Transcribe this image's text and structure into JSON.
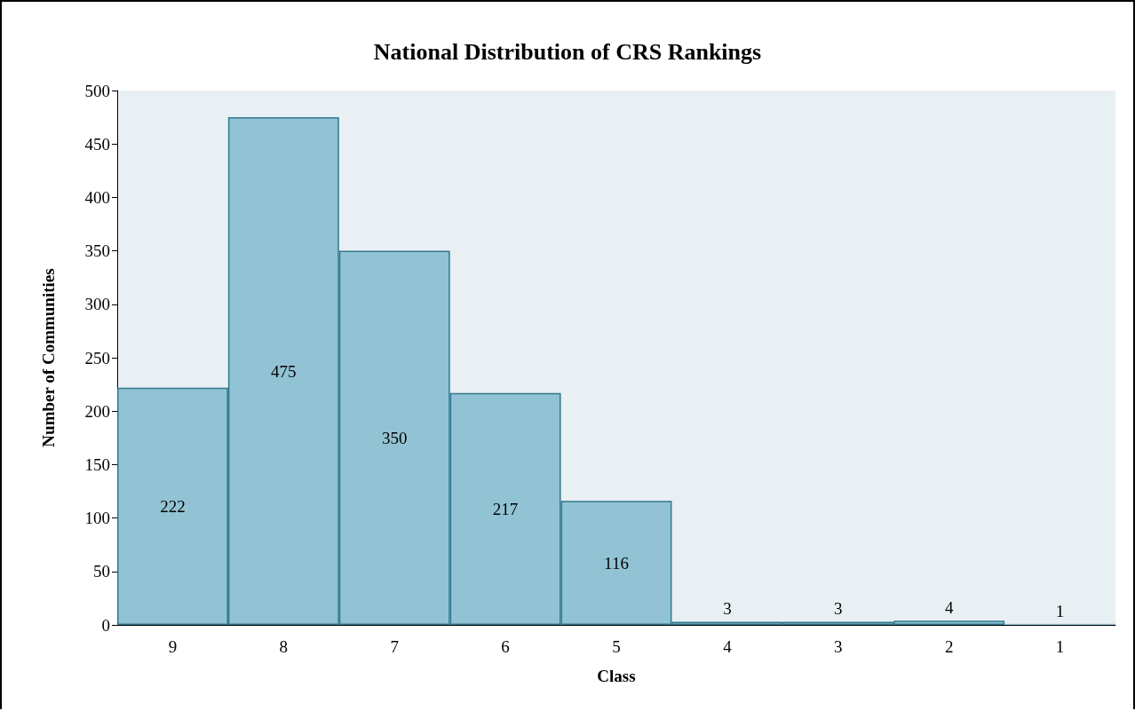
{
  "chart_data": {
    "type": "bar",
    "title": "National Distribution of CRS Rankings",
    "xlabel": "Class",
    "ylabel": "Number of Communities",
    "categories": [
      "9",
      "8",
      "7",
      "6",
      "5",
      "4",
      "3",
      "2",
      "1"
    ],
    "values": [
      222,
      475,
      350,
      217,
      116,
      3,
      3,
      4,
      1
    ],
    "color": "#92c3d5",
    "ylim": [
      0,
      500
    ],
    "yticks": [
      0,
      50,
      100,
      150,
      200,
      250,
      300,
      350,
      400,
      450,
      500
    ],
    "grid": false,
    "data_labels": true
  }
}
